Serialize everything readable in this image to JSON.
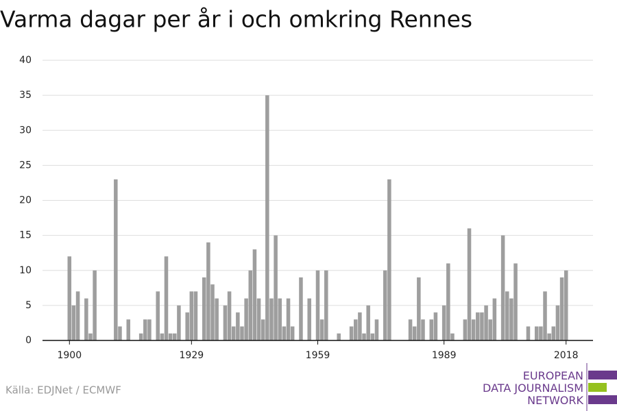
{
  "chart_data": {
    "type": "bar",
    "title": "Varma dagar per år i och omkring Rennes",
    "source": "Källa: EDJNet / ECMWF",
    "logo": [
      "EUROPEAN",
      "DATA JOURNALISM",
      "NETWORK"
    ],
    "color": "#9e9e9e",
    "grid": true,
    "x": [
      1900,
      1901,
      1902,
      1903,
      1904,
      1905,
      1906,
      1907,
      1908,
      1909,
      1910,
      1911,
      1912,
      1913,
      1914,
      1915,
      1916,
      1917,
      1918,
      1919,
      1920,
      1921,
      1922,
      1923,
      1924,
      1925,
      1926,
      1927,
      1928,
      1929,
      1930,
      1931,
      1932,
      1933,
      1934,
      1935,
      1936,
      1937,
      1938,
      1939,
      1940,
      1941,
      1942,
      1943,
      1944,
      1945,
      1946,
      1947,
      1948,
      1949,
      1950,
      1951,
      1952,
      1953,
      1954,
      1955,
      1956,
      1957,
      1958,
      1959,
      1960,
      1961,
      1962,
      1963,
      1964,
      1965,
      1966,
      1967,
      1968,
      1969,
      1970,
      1971,
      1972,
      1973,
      1974,
      1975,
      1976,
      1977,
      1978,
      1979,
      1980,
      1981,
      1982,
      1983,
      1984,
      1985,
      1986,
      1987,
      1988,
      1989,
      1990,
      1991,
      1992,
      1993,
      1994,
      1995,
      1996,
      1997,
      1998,
      1999,
      2000,
      2001,
      2002,
      2003,
      2004,
      2005,
      2006,
      2007,
      2008,
      2009,
      2010,
      2011,
      2012,
      2013,
      2014,
      2015,
      2016,
      2017,
      2018
    ],
    "values": [
      12,
      5,
      7,
      0,
      6,
      1,
      10,
      0,
      0,
      0,
      0,
      23,
      2,
      0,
      3,
      0,
      0,
      1,
      3,
      3,
      0,
      7,
      1,
      12,
      1,
      1,
      5,
      0,
      4,
      7,
      7,
      0,
      9,
      14,
      8,
      6,
      0,
      5,
      7,
      2,
      4,
      2,
      6,
      10,
      13,
      6,
      3,
      35,
      6,
      15,
      6,
      2,
      6,
      2,
      0,
      9,
      0,
      6,
      0,
      10,
      3,
      10,
      0,
      0,
      1,
      0,
      0,
      2,
      3,
      4,
      1,
      5,
      1,
      3,
      0,
      10,
      23,
      0,
      0,
      0,
      0,
      3,
      2,
      9,
      3,
      0,
      3,
      4,
      0,
      5,
      11,
      1,
      0,
      0,
      3,
      16,
      3,
      4,
      4,
      5,
      3,
      6,
      0,
      15,
      7,
      6,
      11,
      0,
      0,
      2,
      0,
      2,
      2,
      7,
      1,
      2,
      5,
      9,
      10
    ],
    "xlim": [
      1893.6,
      2024.4
    ],
    "xticks": [
      1900,
      1929,
      1959,
      1989,
      2018
    ],
    "ylim": [
      0,
      40
    ],
    "yticks": [
      0,
      5,
      10,
      15,
      20,
      25,
      30,
      35,
      40
    ]
  }
}
